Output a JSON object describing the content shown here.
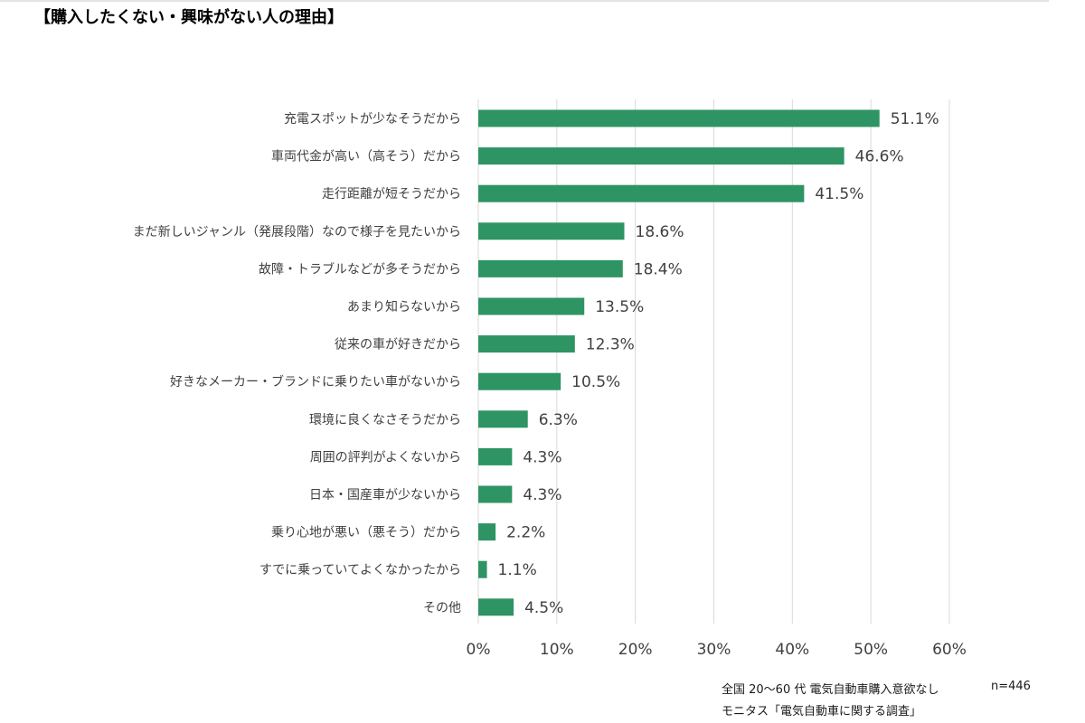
{
  "title": "【購入したくない・興味がない人の理由】",
  "colors": {
    "bar": "#2e9463",
    "grid": "#d9d9d9",
    "text": "#404040"
  },
  "chart_data": {
    "type": "bar",
    "orientation": "horizontal",
    "title": "",
    "xlabel": "",
    "ylabel": "",
    "categories": [
      "充電スポットが少なそうだから",
      "車両代金が高い（高そう）だから",
      "走行距離が短そうだから",
      "まだ新しいジャンル（発展段階）なので様子を見たいから",
      "故障・トラブルなどが多そうだから",
      "あまり知らないから",
      "従来の車が好きだから",
      "好きなメーカー・ブランドに乗りたい車がないから",
      "環境に良くなさそうだから",
      "周囲の評判がよくないから",
      "日本・国産車が少ないから",
      "乗り心地が悪い（悪そう）だから",
      "すでに乗っていてよくなかったから",
      "その他"
    ],
    "values": [
      51.1,
      46.6,
      41.5,
      18.6,
      18.4,
      13.5,
      12.3,
      10.5,
      6.3,
      4.3,
      4.3,
      2.2,
      1.1,
      4.5
    ],
    "value_labels": [
      "51.1%",
      "46.6%",
      "41.5%",
      "18.6%",
      "18.4%",
      "13.5%",
      "12.3%",
      "10.5%",
      "6.3%",
      "4.3%",
      "4.3%",
      "2.2%",
      "1.1%",
      "4.5%"
    ],
    "xlim": [
      0,
      60
    ],
    "xticks": [
      0,
      10,
      20,
      30,
      40,
      50,
      60
    ],
    "xtick_labels": [
      "0%",
      "10%",
      "20%",
      "30%",
      "40%",
      "50%",
      "60%"
    ],
    "grid": "vertical",
    "legend": "none"
  },
  "footnotes": {
    "survey": "全国 20〜60 代  電気自動車購入意欲なし",
    "n": "n=446",
    "source": "モニタス「電気自動車に関する調査」"
  }
}
